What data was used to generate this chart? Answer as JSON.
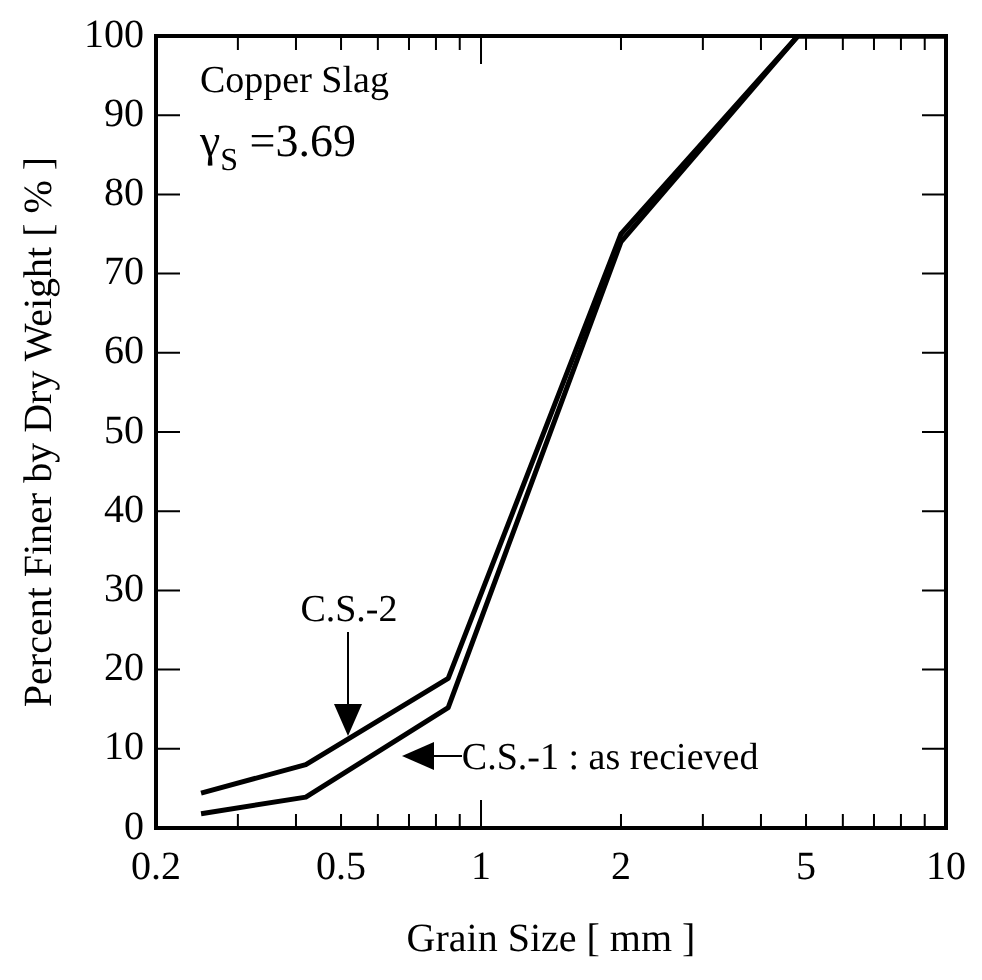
{
  "chart_data": {
    "type": "line",
    "xlabel": "Grain Size [ mm ]",
    "ylabel": "Percent Finer by Dry Weight [ % ]",
    "log": "x",
    "xlim": [
      0.2,
      10
    ],
    "xticks": [
      0.2,
      0.5,
      1,
      2,
      5,
      10
    ],
    "ylim": [
      0,
      100
    ],
    "yticks": [
      0,
      10,
      20,
      30,
      40,
      50,
      60,
      70,
      80,
      90,
      100
    ],
    "grid": false,
    "legend": false,
    "marker": "none",
    "line_style": "solid",
    "series": [
      {
        "color": "#000000",
        "x": [
          0.25,
          0.42,
          0.85,
          2,
          4.8,
          10
        ],
        "values": [
          4.4,
          8,
          18.9,
          75,
          100,
          100
        ]
      },
      {
        "color": "#000000",
        "x": [
          0.25,
          0.42,
          0.85,
          2,
          4.8,
          10
        ],
        "values": [
          1.8,
          3.9,
          15.2,
          74,
          100,
          100
        ]
      }
    ],
    "annotations": [
      "Copper Slag",
      "γ$_{S}$ =3.69",
      {
        "text": "C.S.-2",
        "x": 0.52,
        "y": 10.5
      },
      {
        "text": "C.S.-1 : as recieved",
        "x": 0.6,
        "y": 9
      }
    ]
  }
}
